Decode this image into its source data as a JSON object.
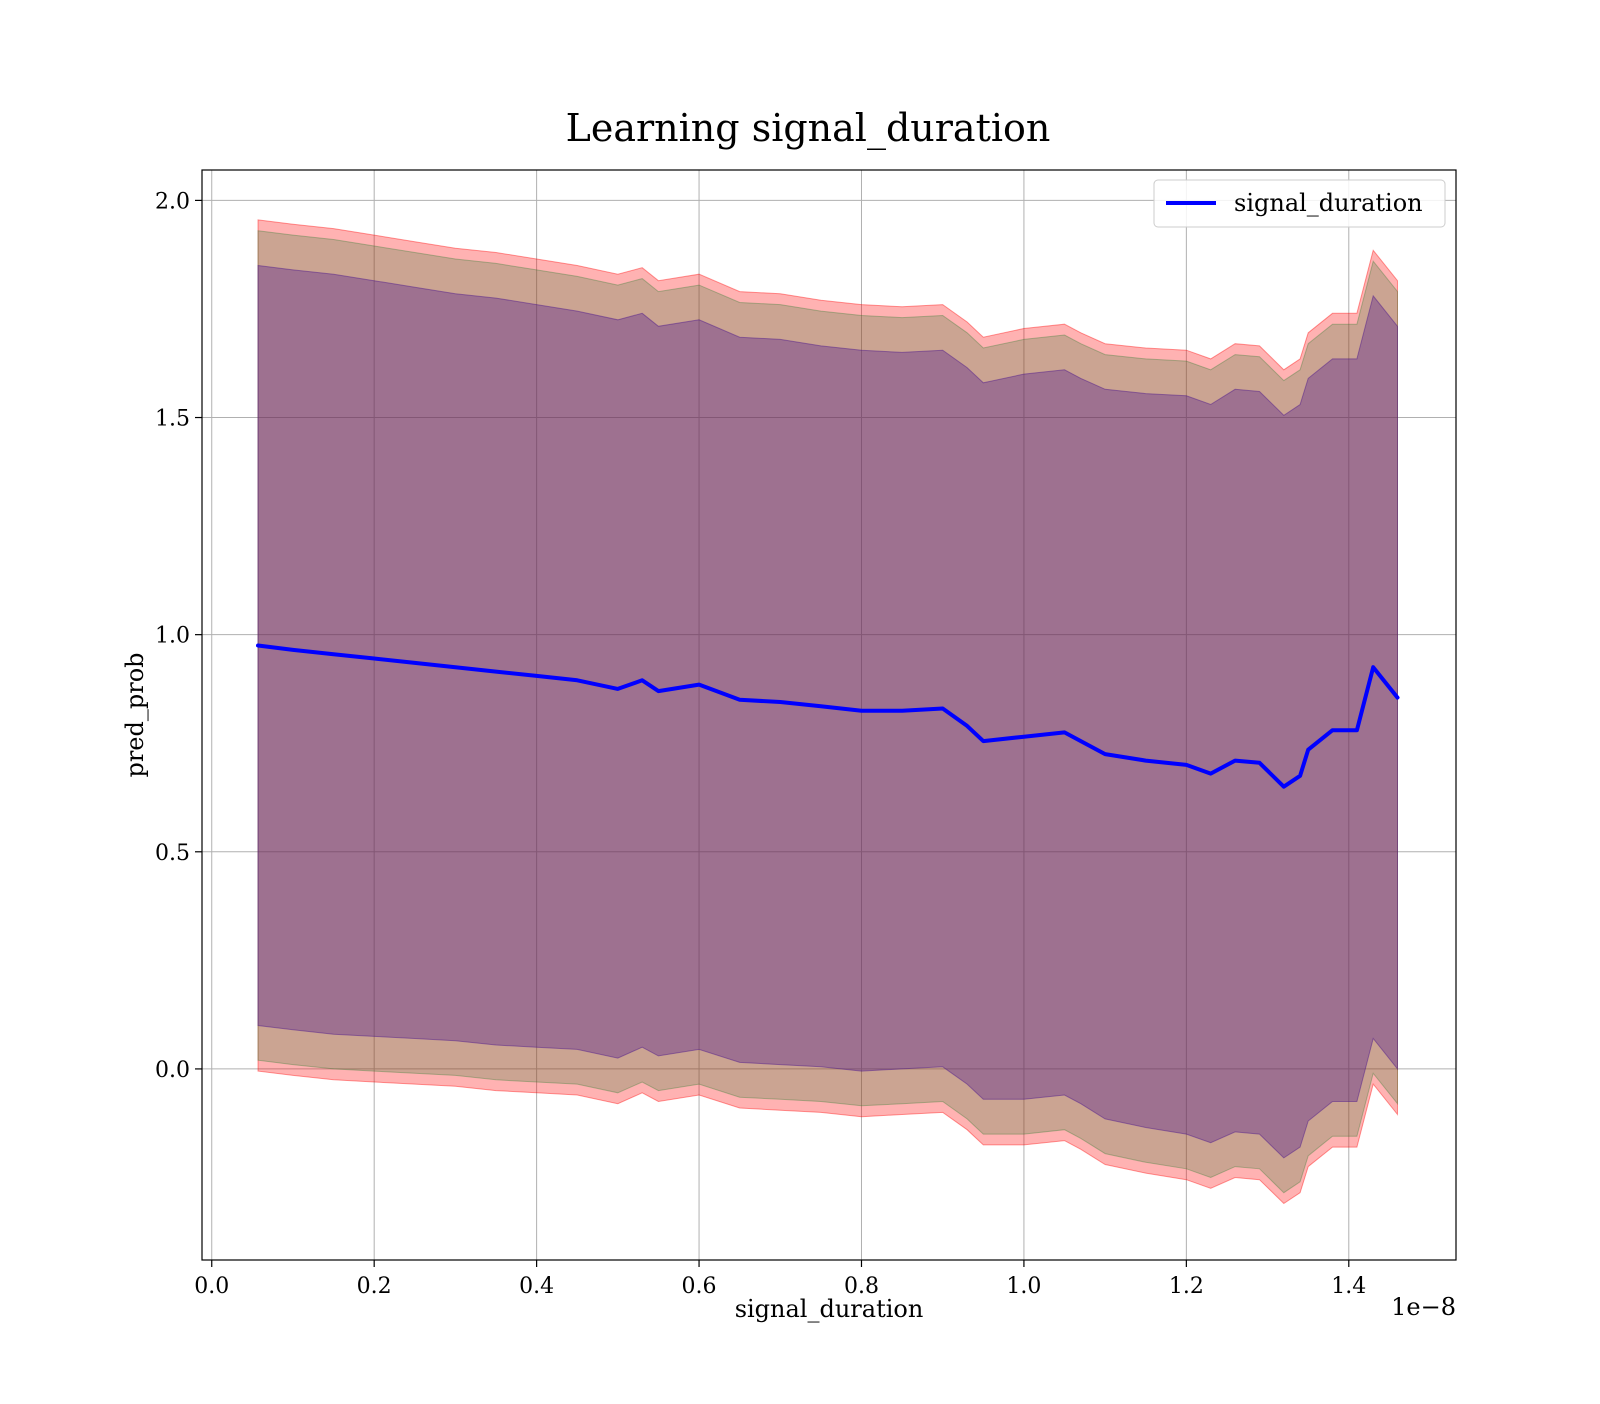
{
  "chart_data": {
    "type": "line",
    "title": "Learning signal_duration",
    "xlabel": "signal_duration",
    "ylabel": "pred_prob",
    "x_offset_text": "1e−8",
    "x_scale_note": "x tick values are multiplied by 1e-8",
    "xlim": [
      -0.012,
      1.532
    ],
    "ylim": [
      -0.44,
      2.07
    ],
    "xticks": [
      0.0,
      0.2,
      0.4,
      0.6,
      0.8,
      1.0,
      1.2,
      1.4
    ],
    "xtick_labels": [
      "0.0",
      "0.2",
      "0.4",
      "0.6",
      "0.8",
      "1.0",
      "1.2",
      "1.4"
    ],
    "yticks": [
      0.0,
      0.5,
      1.0,
      1.5,
      2.0
    ],
    "ytick_labels": [
      "0.0",
      "0.5",
      "1.0",
      "1.5",
      "2.0"
    ],
    "grid": true,
    "legend_position": "top-right",
    "legend_handle_color": "#0000ff",
    "series": [
      {
        "name": "signal_duration",
        "role": "mean",
        "color": "#0000ff",
        "x": [
          0.057,
          0.1,
          0.15,
          0.2,
          0.25,
          0.3,
          0.35,
          0.4,
          0.45,
          0.5,
          0.53,
          0.55,
          0.6,
          0.65,
          0.7,
          0.75,
          0.8,
          0.85,
          0.9,
          0.93,
          0.95,
          1.0,
          1.05,
          1.07,
          1.1,
          1.15,
          1.2,
          1.23,
          1.26,
          1.29,
          1.32,
          1.34,
          1.35,
          1.38,
          1.41,
          1.43,
          1.46
        ],
        "values": [
          0.975,
          0.965,
          0.955,
          0.945,
          0.935,
          0.925,
          0.915,
          0.905,
          0.895,
          0.875,
          0.895,
          0.87,
          0.885,
          0.85,
          0.845,
          0.835,
          0.825,
          0.825,
          0.83,
          0.79,
          0.755,
          0.765,
          0.775,
          0.755,
          0.725,
          0.71,
          0.7,
          0.68,
          0.71,
          0.705,
          0.65,
          0.675,
          0.735,
          0.78,
          0.78,
          0.925,
          0.855
        ]
      }
    ],
    "bands": [
      {
        "role": "outer band",
        "color": "#ff0000",
        "opacity": 0.3,
        "half_width": [
          0.98,
          0.98,
          0.98,
          0.975,
          0.97,
          0.965,
          0.965,
          0.96,
          0.955,
          0.955,
          0.95,
          0.945,
          0.945,
          0.94,
          0.94,
          0.935,
          0.935,
          0.93,
          0.93,
          0.93,
          0.93,
          0.94,
          0.94,
          0.94,
          0.945,
          0.95,
          0.955,
          0.955,
          0.96,
          0.96,
          0.96,
          0.96,
          0.96,
          0.96,
          0.96,
          0.96,
          0.96
        ]
      },
      {
        "role": "middle band",
        "color": "#2e7d32",
        "opacity": 0.25,
        "half_width": [
          0.955,
          0.955,
          0.955,
          0.95,
          0.945,
          0.94,
          0.94,
          0.935,
          0.93,
          0.93,
          0.925,
          0.92,
          0.92,
          0.915,
          0.915,
          0.91,
          0.91,
          0.905,
          0.905,
          0.905,
          0.905,
          0.915,
          0.915,
          0.915,
          0.92,
          0.925,
          0.93,
          0.93,
          0.935,
          0.935,
          0.935,
          0.935,
          0.935,
          0.935,
          0.935,
          0.935,
          0.935
        ]
      },
      {
        "role": "inner band",
        "color": "#4a148c",
        "opacity": 0.35,
        "half_width": [
          0.875,
          0.875,
          0.875,
          0.87,
          0.865,
          0.86,
          0.86,
          0.855,
          0.85,
          0.85,
          0.845,
          0.84,
          0.84,
          0.835,
          0.835,
          0.83,
          0.83,
          0.825,
          0.825,
          0.825,
          0.825,
          0.835,
          0.835,
          0.835,
          0.84,
          0.845,
          0.85,
          0.85,
          0.855,
          0.855,
          0.855,
          0.855,
          0.855,
          0.855,
          0.855,
          0.855,
          0.855
        ]
      }
    ]
  }
}
